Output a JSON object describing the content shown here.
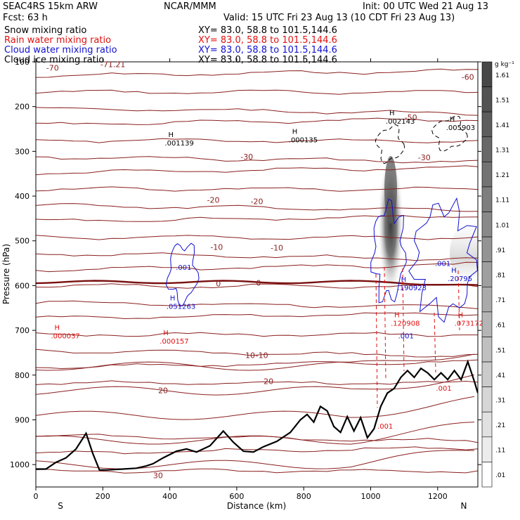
{
  "header": {
    "model": "SEAC4RS 15km ARW",
    "org": "NCAR/MMM",
    "init": "Init: 00 UTC Wed 21 Aug 13",
    "fcst": "Fcst:   63 h",
    "valid": "Valid: 15 UTC Fri 23 Aug 13 (10 CDT Fri 23 Aug 13)"
  },
  "fields": [
    {
      "name": "Snow mixing ratio",
      "xy": "XY=  83.0, 58.8 to 101.5,144.6",
      "color": "#000000"
    },
    {
      "name": "Rain water mixing ratio",
      "xy": "XY=  83.0, 58.8 to 101.5,144.6",
      "color": "#e01010"
    },
    {
      "name": "Cloud water mixing ratio",
      "xy": "XY=  83.0, 58.8 to 101.5,144.6",
      "color": "#1010d0"
    },
    {
      "name": "Cloud ice mixing ratio",
      "xy": "XY=  83.0, 58.8 to 101.5,144.6",
      "color": "#000000"
    }
  ],
  "chart_data": {
    "type": "contour",
    "xlabel": "Distance (km)",
    "ylabel": "Pressure (hPa)",
    "xlim": [
      0,
      1320
    ],
    "ylim": [
      1050,
      100
    ],
    "x_ticks": [
      0,
      200,
      400,
      600,
      800,
      1000,
      1200
    ],
    "y_ticks": [
      100,
      200,
      300,
      400,
      500,
      600,
      700,
      800,
      900,
      1000
    ],
    "y_tick_labels": [
      "100",
      "200",
      "300",
      "400",
      "500",
      "600",
      "700",
      "800",
      "900",
      "1000"
    ],
    "x_end_labels": {
      "left": "S",
      "right": "N"
    },
    "colorbar": {
      "unit": "g kg⁻¹",
      "levels": [
        1.61,
        1.51,
        1.41,
        1.31,
        1.21,
        1.11,
        1.01,
        0.91,
        0.81,
        0.71,
        0.61,
        0.51,
        0.41,
        0.31,
        0.21,
        0.11,
        0.01
      ],
      "labels": [
        "1.61",
        "1.51",
        "1.41",
        "1.31",
        "1.21",
        "1.11",
        "1.01",
        ".91",
        ".81",
        ".71",
        ".61",
        ".51",
        ".41",
        ".31",
        ".21",
        ".11",
        ".01"
      ],
      "colors": [
        "#474747",
        "#525252",
        "#5d5d5d",
        "#686868",
        "#737373",
        "#7e7e7e",
        "#898989",
        "#949494",
        "#9f9f9f",
        "#aaaaaa",
        "#b5b5b5",
        "#c0c0c0",
        "#cbcbcb",
        "#d6d6d6",
        "#e1e1e1",
        "#ececec",
        "#ffffff"
      ]
    },
    "isotherm_labels": [
      {
        "text": "-70",
        "x": 50,
        "p": 120
      },
      {
        "text": "-71.21",
        "x": 230,
        "p": 112
      },
      {
        "text": "-60",
        "x": 1290,
        "p": 140
      },
      {
        "text": "-50",
        "x": 1120,
        "p": 230
      },
      {
        "text": "-30",
        "x": 630,
        "p": 318
      },
      {
        "text": "-30",
        "x": 1160,
        "p": 320
      },
      {
        "text": "-20",
        "x": 530,
        "p": 415
      },
      {
        "text": "-20",
        "x": 660,
        "p": 418
      },
      {
        "text": "-10",
        "x": 540,
        "p": 520
      },
      {
        "text": "-10",
        "x": 720,
        "p": 522
      },
      {
        "text": "0",
        "x": 545,
        "p": 602
      },
      {
        "text": "0",
        "x": 665,
        "p": 600
      },
      {
        "text": "10",
        "x": 640,
        "p": 762
      },
      {
        "text": "-10",
        "x": 675,
        "p": 762
      },
      {
        "text": "20",
        "x": 380,
        "p": 840
      },
      {
        "text": "20",
        "x": 695,
        "p": 820
      },
      {
        "text": "30",
        "x": 365,
        "p": 1030
      }
    ],
    "extrema": [
      {
        "label": "H",
        "value": ".000037",
        "x": 45,
        "p": 718,
        "color": "#e01010"
      },
      {
        "label": "H",
        "value": ".000157",
        "x": 370,
        "p": 730,
        "color": "#e01010"
      },
      {
        "label": "H",
        "value": ".001139",
        "x": 385,
        "p": 287,
        "color": "#000000"
      },
      {
        "label": "H",
        "value": ".000135",
        "x": 755,
        "p": 280,
        "color": "#000000"
      },
      {
        "label": "H",
        "value": ".002143",
        "x": 1045,
        "p": 238,
        "color": "#000000"
      },
      {
        "label": "H",
        "value": ".005903",
        "x": 1225,
        "p": 252,
        "color": "#000000"
      },
      {
        "label": "H",
        "value": ".051263",
        "x": 390,
        "p": 652,
        "color": "#1010d0"
      },
      {
        "label": "H",
        "value": ".190923",
        "x": 1080,
        "p": 610,
        "color": "#1010d0"
      },
      {
        "label": "H",
        "value": ".20795",
        "x": 1230,
        "p": 590,
        "color": "#1010d0"
      },
      {
        "label": "H",
        "value": ".120908",
        "x": 1060,
        "p": 690,
        "color": "#e01010"
      },
      {
        "label": "H",
        "value": ".073172",
        "x": 1250,
        "p": 690,
        "color": "#e01010"
      }
    ],
    "contour_labels": [
      {
        "text": ".001",
        "x": 418,
        "p": 565,
        "color": "#1010d0"
      },
      {
        "text": ".001",
        "x": 1192,
        "p": 556,
        "color": "#1010d0"
      },
      {
        "text": ".001",
        "x": 1082,
        "p": 718,
        "color": "#1010d0"
      },
      {
        "text": ".001",
        "x": 1195,
        "p": 835,
        "color": "#e01010"
      },
      {
        "text": ".001",
        "x": 1020,
        "p": 920,
        "color": "#e01010"
      }
    ],
    "terrain": {
      "x": [
        0,
        30,
        60,
        90,
        120,
        150,
        170,
        190,
        210,
        260,
        300,
        330,
        350,
        380,
        420,
        450,
        480,
        520,
        560,
        590,
        620,
        650,
        680,
        720,
        760,
        790,
        810,
        830,
        850,
        870,
        890,
        910,
        930,
        950,
        970,
        990,
        1010,
        1030,
        1050,
        1070,
        1090,
        1110,
        1130,
        1150,
        1170,
        1190,
        1210,
        1230,
        1250,
        1270,
        1290,
        1310,
        1320
      ],
      "p": [
        1010,
        1010,
        995,
        985,
        965,
        930,
        975,
        1012,
        1012,
        1010,
        1008,
        1003,
        998,
        985,
        970,
        965,
        972,
        958,
        925,
        950,
        970,
        972,
        960,
        948,
        928,
        900,
        888,
        905,
        870,
        880,
        915,
        928,
        893,
        925,
        895,
        940,
        920,
        870,
        840,
        830,
        805,
        790,
        805,
        785,
        795,
        810,
        795,
        810,
        790,
        810,
        770,
        815,
        840
      ]
    }
  }
}
